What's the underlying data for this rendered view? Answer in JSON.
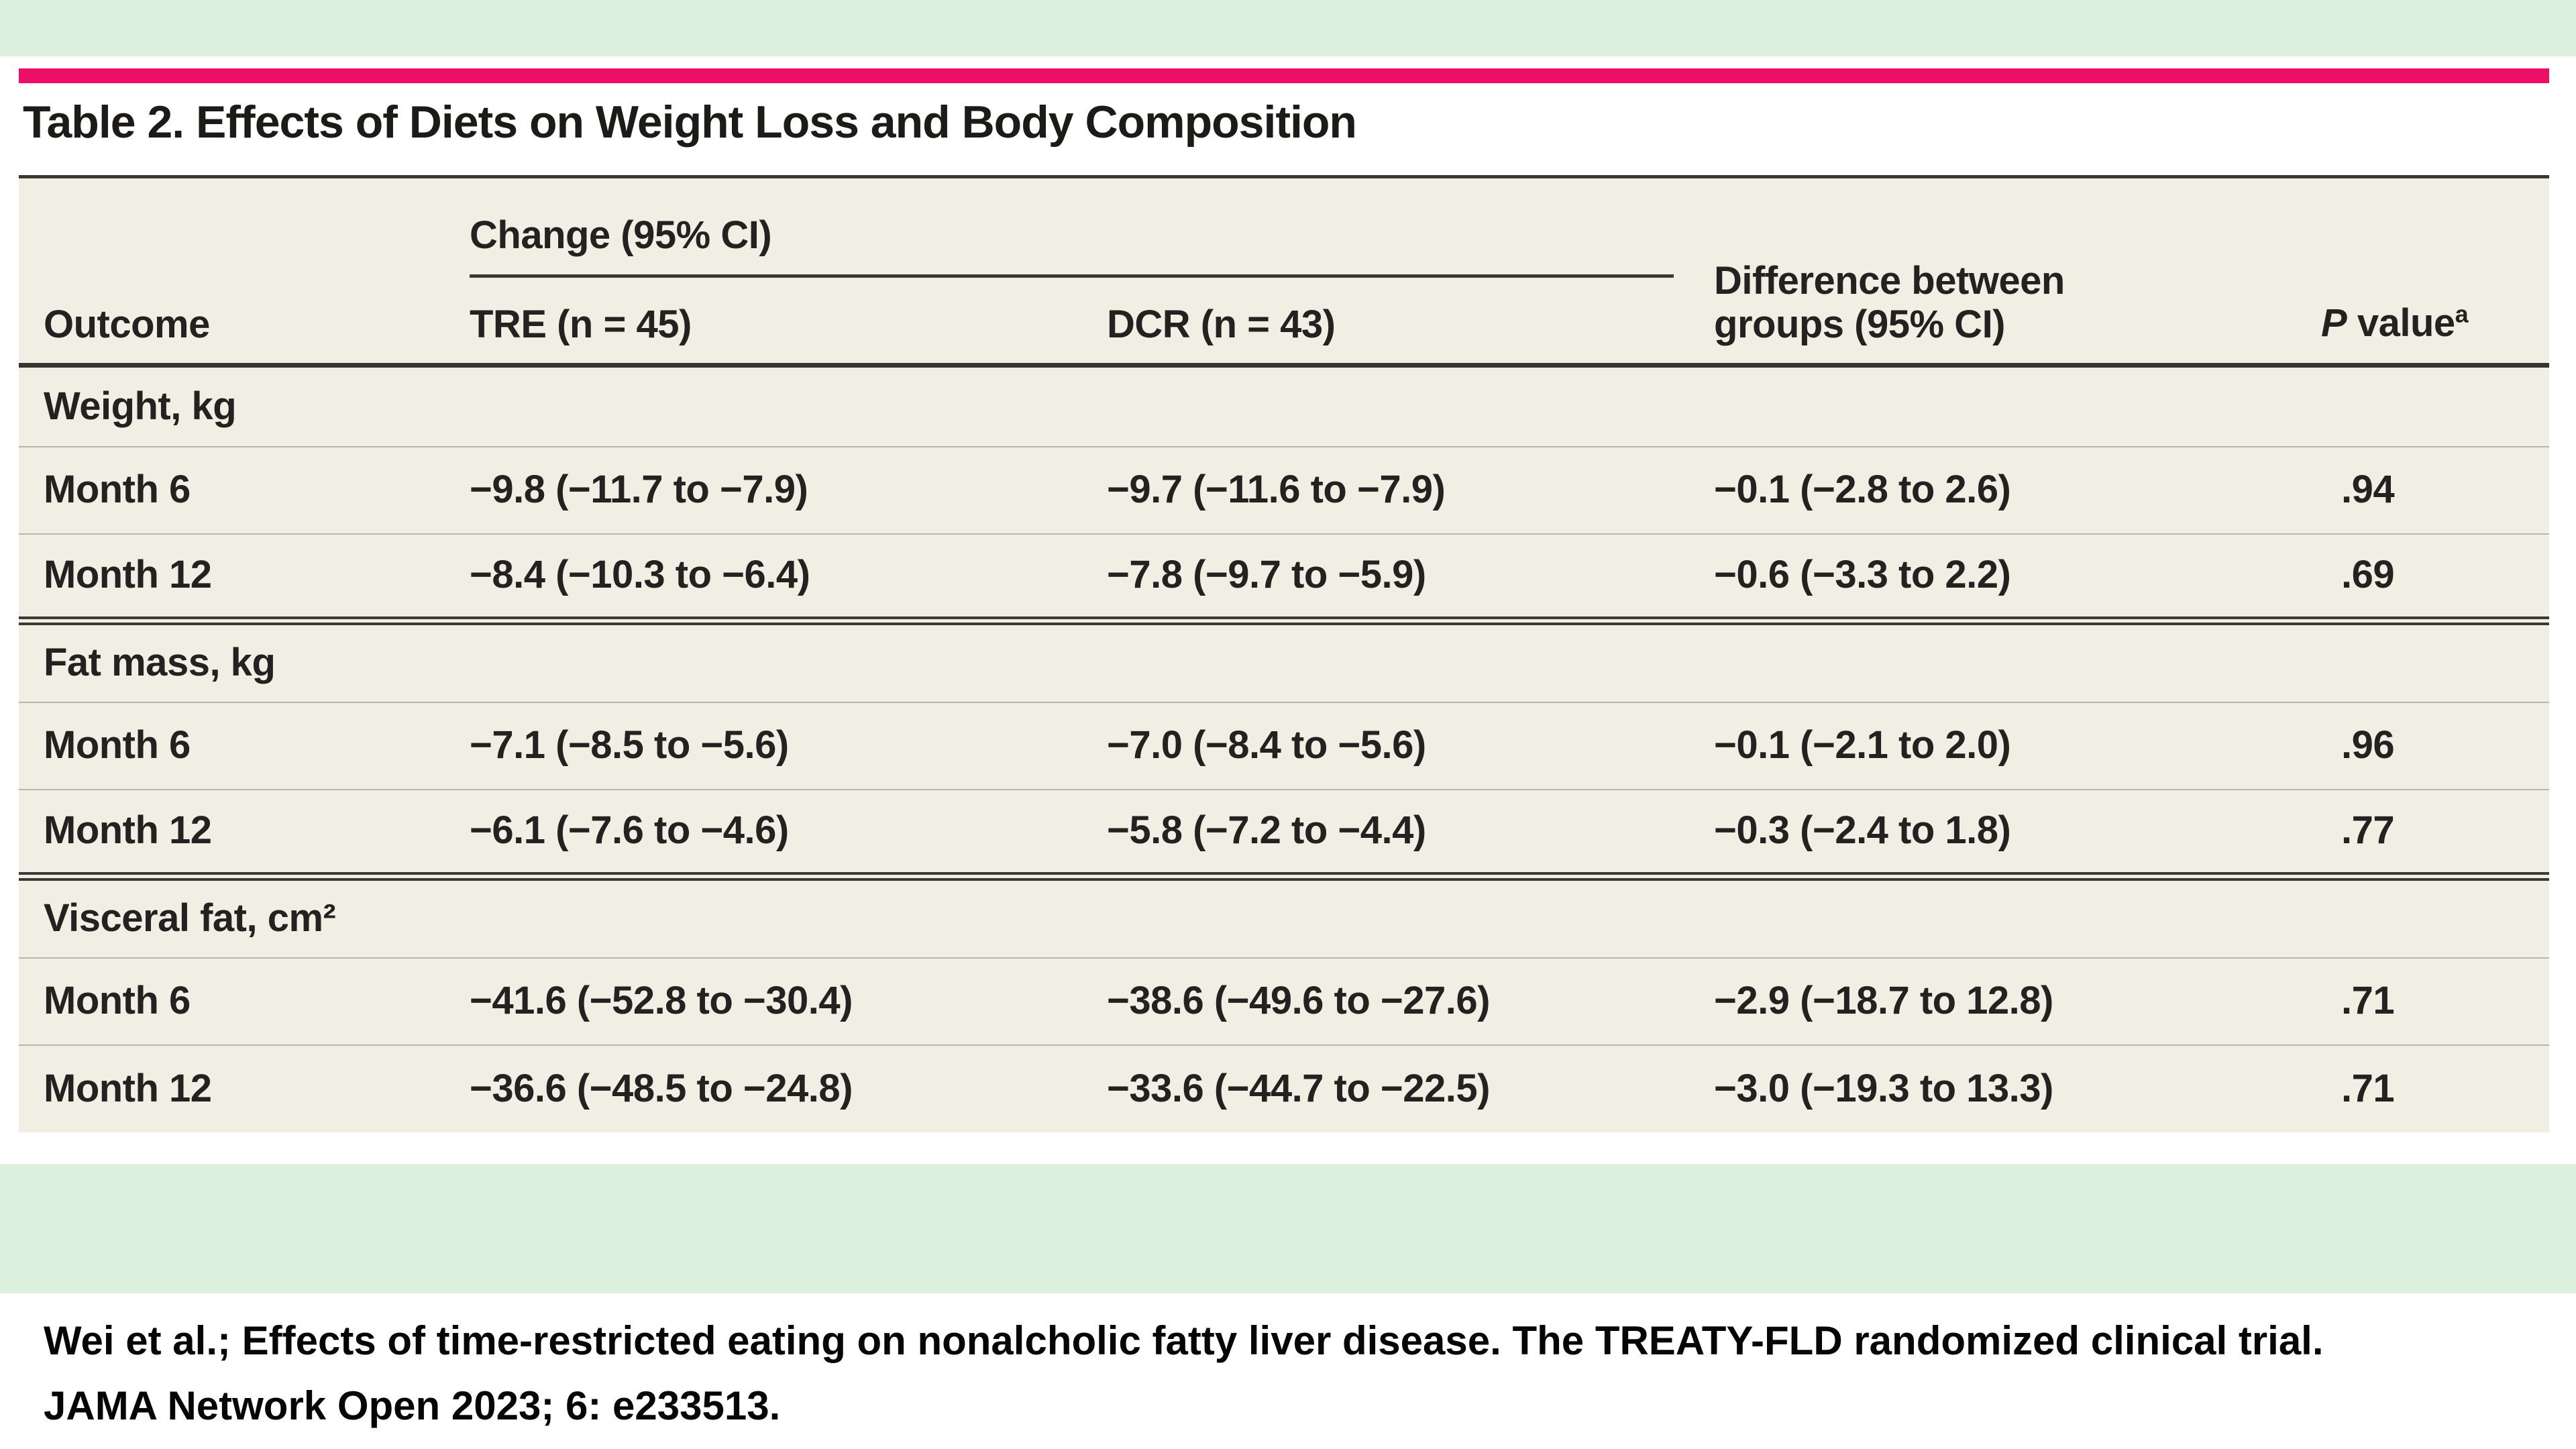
{
  "colors": {
    "accent_pink": "#ec0e67",
    "band_green": "#ddf0de",
    "table_cream": "#f1efe4",
    "rule_dark": "#3a3935",
    "rule_light": "#b9b7aa"
  },
  "title": "Table 2. Effects of Diets on Weight Loss and Body Composition",
  "table": {
    "header": {
      "outcome": "Outcome",
      "spanner": "Change (95% CI)",
      "tre": "TRE (n = 45)",
      "dcr": "DCR (n = 43)",
      "diff_line1": "Difference between",
      "diff_line2": "groups (95% CI)",
      "p_italic": "P",
      "p_rest": " value",
      "p_sup": "a"
    },
    "sections": [
      {
        "label": "Weight, kg",
        "rows": [
          {
            "outcome": "Month 6",
            "tre": "−9.8 (−11.7 to −7.9)",
            "dcr": "−9.7 (−11.6 to −7.9)",
            "diff": "−0.1 (−2.8 to 2.6)",
            "p": ".94"
          },
          {
            "outcome": "Month 12",
            "tre": "−8.4 (−10.3 to −6.4)",
            "dcr": "−7.8 (−9.7 to −5.9)",
            "diff": "−0.6 (−3.3 to 2.2)",
            "p": ".69"
          }
        ]
      },
      {
        "label": "Fat mass, kg",
        "rows": [
          {
            "outcome": "Month 6",
            "tre": "−7.1 (−8.5 to −5.6)",
            "dcr": "−7.0 (−8.4 to −5.6)",
            "diff": "−0.1 (−2.1 to 2.0)",
            "p": ".96"
          },
          {
            "outcome": "Month 12",
            "tre": "−6.1 (−7.6 to −4.6)",
            "dcr": "−5.8 (−7.2 to −4.4)",
            "diff": "−0.3 (−2.4 to 1.8)",
            "p": ".77"
          }
        ]
      },
      {
        "label": "Visceral fat, cm²",
        "rows": [
          {
            "outcome": "Month 6",
            "tre": "−41.6 (−52.8 to −30.4)",
            "dcr": "−38.6 (−49.6 to −27.6)",
            "diff": "−2.9 (−18.7 to 12.8)",
            "p": ".71"
          },
          {
            "outcome": "Month 12",
            "tre": "−36.6 (−48.5 to −24.8)",
            "dcr": "−33.6 (−44.7 to −22.5)",
            "diff": "−3.0 (−19.3 to 13.3)",
            "p": ".71"
          }
        ]
      }
    ]
  },
  "citation": {
    "line1": "Wei et al.; Effects of time-restricted eating on nonalcholic fatty liver disease. The TREATY-FLD randomized clinical trial.",
    "line2": "JAMA Network Open 2023; 6: e233513."
  }
}
